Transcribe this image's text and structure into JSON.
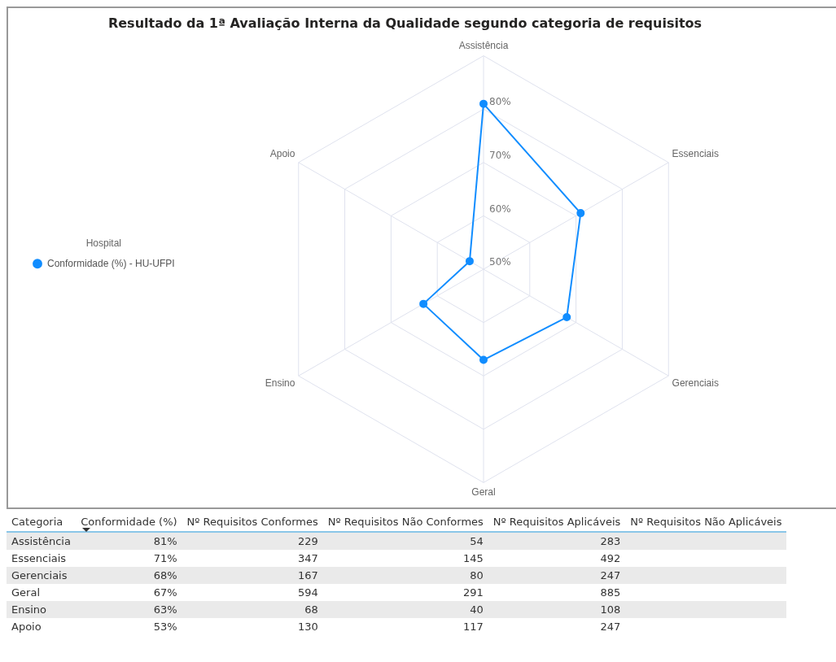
{
  "chart_data": [
    {
      "type": "radar",
      "title": "Resultado da 1ª Avaliação Interna da Qualidade segundo categoria de requisitos",
      "legend_title": "Hospital",
      "legend": "left",
      "marker": "circle",
      "grid": true,
      "categories": [
        "Assistência",
        "Essenciais",
        "Gerenciais",
        "Geral",
        "Ensino",
        "Apoio"
      ],
      "series": [
        {
          "name": "Conformidade (%) - HU-UFPI",
          "color": "#118dff",
          "values": [
            81,
            71,
            68,
            67,
            63,
            53
          ]
        }
      ],
      "ylim": [
        50,
        90
      ],
      "yticks": [
        {
          "value": 50,
          "label": "50%"
        },
        {
          "value": 60,
          "label": "60%"
        },
        {
          "value": 70,
          "label": "70%"
        },
        {
          "value": 80,
          "label": "80%"
        }
      ]
    },
    {
      "type": "other",
      "xlabel": "Categoria",
      "categories": [
        "Assistência",
        "Essenciais",
        "Gerenciais",
        "Geral",
        "Ensino",
        "Apoio"
      ],
      "series": [
        {
          "name": "Conformidade (%)",
          "values": [
            81,
            71,
            68,
            67,
            63,
            53
          ],
          "value_labels": [
            "81%",
            "71%",
            "68%",
            "67%",
            "63%",
            "53%"
          ]
        },
        {
          "name": "Nº Requisitos Conformes",
          "values": [
            229,
            347,
            167,
            594,
            68,
            130
          ],
          "value_labels": [
            "229",
            "347",
            "167",
            "594",
            "68",
            "130"
          ]
        },
        {
          "name": "Nº Requisitos Não Conformes",
          "values": [
            54,
            145,
            80,
            291,
            40,
            117
          ],
          "value_labels": [
            "54",
            "145",
            "80",
            "291",
            "40",
            "117"
          ]
        },
        {
          "name": "Nº Requisitos Aplicáveis",
          "values": [
            283,
            492,
            247,
            885,
            108,
            247
          ],
          "value_labels": [
            "283",
            "492",
            "247",
            "885",
            "108",
            "247"
          ]
        },
        {
          "name": "Nº Requisitos Não Aplicáveis",
          "values": [
            null,
            null,
            null,
            null,
            null,
            null
          ]
        }
      ]
    }
  ]
}
